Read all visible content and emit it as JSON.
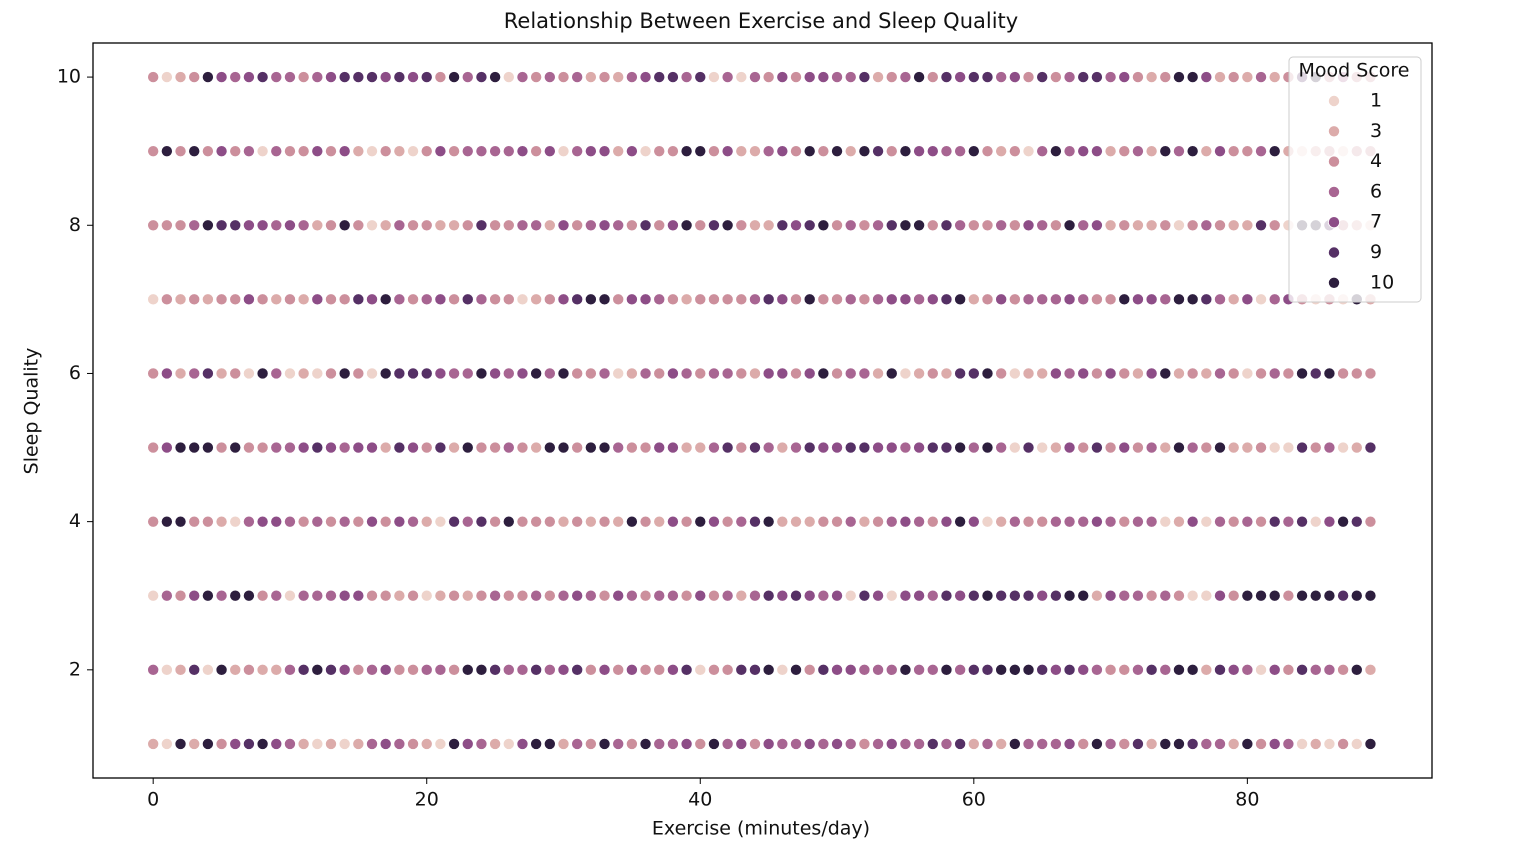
{
  "chart_data": {
    "type": "scatter",
    "title": "Relationship Between Exercise and Sleep Quality",
    "xlabel": "Exercise (minutes/day)",
    "ylabel": "Sleep Quality",
    "xlim": [
      -4.4,
      93.5
    ],
    "ylim": [
      0.54,
      10.46
    ],
    "xticks": [
      0,
      20,
      40,
      60,
      80
    ],
    "yticks": [
      2,
      4,
      6,
      8,
      10
    ],
    "legend": {
      "title": "Mood Score",
      "corner": "upper right",
      "levels": [
        1,
        3,
        4,
        6,
        7,
        9,
        10
      ],
      "colors": [
        "#eed3cb",
        "#dcabaa",
        "#cc8f9c",
        "#a86592",
        "#8d4d87",
        "#553065",
        "#2d1e3e"
      ]
    },
    "x": [
      0,
      1,
      2,
      3,
      4,
      5,
      6,
      7,
      8,
      9,
      10,
      11,
      12,
      13,
      14,
      15,
      16,
      17,
      18,
      19,
      20,
      21,
      22,
      23,
      24,
      25,
      26,
      27,
      28,
      29,
      30,
      31,
      32,
      33,
      34,
      35,
      36,
      37,
      38,
      39,
      40,
      41,
      42,
      43,
      44,
      45,
      46,
      47,
      48,
      49,
      50,
      51,
      52,
      53,
      54,
      55,
      56,
      57,
      58,
      59,
      60,
      61,
      62,
      63,
      64,
      65,
      66,
      67,
      68,
      69,
      70,
      71,
      72,
      73,
      74,
      75,
      76,
      77,
      78,
      79,
      80,
      81,
      82,
      83,
      84,
      85,
      86,
      87,
      88,
      89
    ],
    "rows": [
      {
        "y": 10,
        "mood": [
          4,
          1,
          3,
          4,
          10,
          7,
          6,
          7,
          9,
          6,
          6,
          4,
          6,
          7,
          9,
          9,
          9,
          7,
          9,
          7,
          9,
          4,
          10,
          6,
          9,
          10,
          1,
          6,
          4,
          6,
          4,
          6,
          3,
          4,
          3,
          6,
          7,
          9,
          9,
          6,
          9,
          1,
          6,
          1,
          6,
          4,
          7,
          4,
          7,
          7,
          6,
          6,
          9,
          3,
          4,
          6,
          10,
          4,
          9,
          7,
          9,
          9,
          6,
          7,
          4,
          9,
          4,
          6,
          9,
          9,
          6,
          7,
          4,
          3,
          4,
          10,
          10,
          7,
          3,
          4,
          3,
          6,
          3,
          4,
          9,
          10,
          4,
          6,
          4,
          4
        ]
      },
      {
        "y": 9,
        "mood": [
          4,
          10,
          4,
          10,
          4,
          7,
          4,
          6,
          1,
          6,
          4,
          4,
          7,
          4,
          7,
          3,
          1,
          4,
          3,
          1,
          4,
          7,
          4,
          6,
          6,
          6,
          6,
          7,
          4,
          7,
          1,
          6,
          7,
          7,
          3,
          7,
          1,
          4,
          4,
          10,
          10,
          4,
          7,
          3,
          3,
          6,
          7,
          4,
          10,
          4,
          10,
          3,
          10,
          9,
          4,
          10,
          7,
          7,
          6,
          6,
          10,
          4,
          3,
          4,
          1,
          6,
          10,
          6,
          7,
          7,
          3,
          4,
          6,
          3,
          10,
          6,
          10,
          3,
          7,
          4,
          4,
          6,
          10,
          3,
          1,
          3,
          4,
          1,
          4,
          4
        ]
      },
      {
        "y": 8,
        "mood": [
          4,
          4,
          4,
          6,
          10,
          9,
          9,
          7,
          7,
          6,
          7,
          6,
          3,
          4,
          10,
          4,
          1,
          3,
          6,
          4,
          4,
          3,
          3,
          4,
          9,
          4,
          4,
          6,
          6,
          3,
          7,
          4,
          6,
          7,
          6,
          4,
          9,
          4,
          7,
          10,
          4,
          9,
          10,
          4,
          3,
          3,
          9,
          7,
          9,
          10,
          4,
          6,
          4,
          6,
          9,
          10,
          10,
          4,
          9,
          6,
          4,
          4,
          6,
          4,
          7,
          6,
          4,
          10,
          6,
          7,
          3,
          4,
          3,
          3,
          4,
          1,
          4,
          6,
          4,
          3,
          3,
          9,
          4,
          1,
          10,
          10,
          9,
          4,
          3,
          1
        ]
      },
      {
        "y": 7,
        "mood": [
          1,
          4,
          3,
          4,
          3,
          4,
          4,
          7,
          4,
          3,
          4,
          3,
          7,
          4,
          4,
          9,
          7,
          10,
          6,
          4,
          6,
          7,
          4,
          9,
          6,
          4,
          4,
          1,
          3,
          4,
          7,
          9,
          10,
          10,
          4,
          7,
          7,
          6,
          4,
          3,
          4,
          4,
          4,
          4,
          6,
          9,
          7,
          4,
          10,
          4,
          4,
          6,
          4,
          6,
          7,
          7,
          6,
          7,
          9,
          10,
          3,
          4,
          7,
          4,
          6,
          6,
          6,
          7,
          6,
          4,
          4,
          10,
          7,
          7,
          6,
          10,
          10,
          9,
          6,
          3,
          7,
          1,
          6,
          7,
          4,
          1,
          4,
          1,
          10,
          3
        ]
      },
      {
        "y": 6,
        "mood": [
          4,
          7,
          3,
          6,
          9,
          3,
          4,
          1,
          10,
          6,
          1,
          3,
          1,
          4,
          10,
          4,
          1,
          10,
          9,
          9,
          9,
          7,
          6,
          6,
          10,
          7,
          6,
          7,
          10,
          6,
          10,
          4,
          4,
          6,
          1,
          3,
          6,
          4,
          7,
          6,
          4,
          6,
          6,
          4,
          3,
          7,
          7,
          4,
          7,
          10,
          4,
          6,
          6,
          3,
          10,
          1,
          3,
          4,
          3,
          9,
          9,
          10,
          4,
          1,
          3,
          3,
          7,
          6,
          7,
          4,
          7,
          4,
          3,
          7,
          10,
          3,
          4,
          3,
          6,
          4,
          1,
          4,
          6,
          4,
          10,
          9,
          10,
          4,
          4,
          4
        ]
      },
      {
        "y": 5,
        "mood": [
          4,
          7,
          10,
          10,
          10,
          4,
          10,
          4,
          4,
          6,
          6,
          7,
          9,
          7,
          6,
          7,
          7,
          3,
          9,
          7,
          4,
          9,
          3,
          10,
          4,
          4,
          6,
          4,
          3,
          10,
          10,
          4,
          10,
          10,
          6,
          4,
          4,
          7,
          7,
          3,
          3,
          6,
          9,
          4,
          9,
          6,
          3,
          6,
          9,
          7,
          7,
          9,
          9,
          7,
          7,
          6,
          7,
          9,
          9,
          10,
          6,
          10,
          6,
          1,
          9,
          1,
          3,
          7,
          4,
          9,
          4,
          7,
          4,
          6,
          3,
          10,
          6,
          4,
          10,
          3,
          3,
          4,
          1,
          1,
          9,
          4,
          6,
          1,
          3,
          9
        ]
      },
      {
        "y": 4,
        "mood": [
          4,
          10,
          10,
          4,
          4,
          3,
          1,
          6,
          7,
          7,
          6,
          4,
          6,
          4,
          6,
          4,
          7,
          4,
          7,
          6,
          3,
          1,
          9,
          6,
          9,
          4,
          10,
          4,
          4,
          4,
          3,
          4,
          3,
          4,
          3,
          10,
          4,
          3,
          7,
          4,
          10,
          7,
          4,
          6,
          9,
          10,
          3,
          3,
          3,
          4,
          4,
          6,
          3,
          4,
          6,
          7,
          6,
          4,
          7,
          10,
          7,
          1,
          3,
          6,
          4,
          4,
          6,
          6,
          6,
          7,
          6,
          4,
          6,
          6,
          1,
          3,
          7,
          1,
          6,
          4,
          6,
          4,
          9,
          6,
          9,
          1,
          7,
          10,
          9,
          4
        ]
      },
      {
        "y": 3,
        "mood": [
          1,
          6,
          4,
          7,
          10,
          6,
          10,
          10,
          4,
          6,
          1,
          6,
          6,
          6,
          7,
          7,
          4,
          4,
          3,
          4,
          1,
          3,
          4,
          3,
          4,
          6,
          4,
          4,
          6,
          4,
          6,
          7,
          6,
          4,
          7,
          6,
          4,
          6,
          6,
          4,
          7,
          4,
          6,
          3,
          6,
          9,
          7,
          9,
          7,
          6,
          7,
          1,
          9,
          7,
          1,
          7,
          7,
          6,
          9,
          7,
          9,
          10,
          9,
          9,
          9,
          7,
          9,
          10,
          10,
          3,
          7,
          6,
          6,
          4,
          6,
          4,
          1,
          1,
          7,
          4,
          10,
          10,
          10,
          4,
          10,
          10,
          10,
          9,
          10,
          10
        ]
      },
      {
        "y": 2,
        "mood": [
          6,
          1,
          3,
          9,
          1,
          10,
          3,
          4,
          3,
          3,
          6,
          9,
          10,
          9,
          7,
          4,
          6,
          7,
          4,
          4,
          6,
          6,
          4,
          10,
          10,
          9,
          6,
          6,
          9,
          6,
          7,
          9,
          4,
          7,
          4,
          7,
          4,
          4,
          7,
          9,
          1,
          4,
          4,
          9,
          9,
          10,
          1,
          10,
          4,
          9,
          7,
          7,
          6,
          6,
          6,
          10,
          6,
          6,
          10,
          6,
          9,
          9,
          10,
          10,
          10,
          9,
          7,
          9,
          7,
          6,
          4,
          4,
          6,
          9,
          6,
          10,
          10,
          3,
          9,
          7,
          6,
          1,
          7,
          4,
          9,
          6,
          6,
          4,
          10,
          3
        ]
      },
      {
        "y": 1,
        "mood": [
          3,
          1,
          10,
          3,
          10,
          4,
          7,
          9,
          10,
          7,
          6,
          3,
          1,
          3,
          1,
          3,
          6,
          7,
          6,
          4,
          3,
          1,
          10,
          7,
          6,
          3,
          1,
          7,
          10,
          10,
          3,
          6,
          4,
          10,
          6,
          4,
          10,
          6,
          6,
          7,
          4,
          10,
          6,
          7,
          4,
          7,
          6,
          6,
          7,
          6,
          7,
          6,
          4,
          6,
          7,
          6,
          6,
          9,
          6,
          9,
          3,
          6,
          3,
          10,
          6,
          6,
          6,
          7,
          4,
          10,
          6,
          4,
          9,
          3,
          10,
          10,
          9,
          6,
          6,
          3,
          10,
          4,
          7,
          6,
          1,
          3,
          1,
          4,
          1,
          10
        ]
      }
    ]
  }
}
